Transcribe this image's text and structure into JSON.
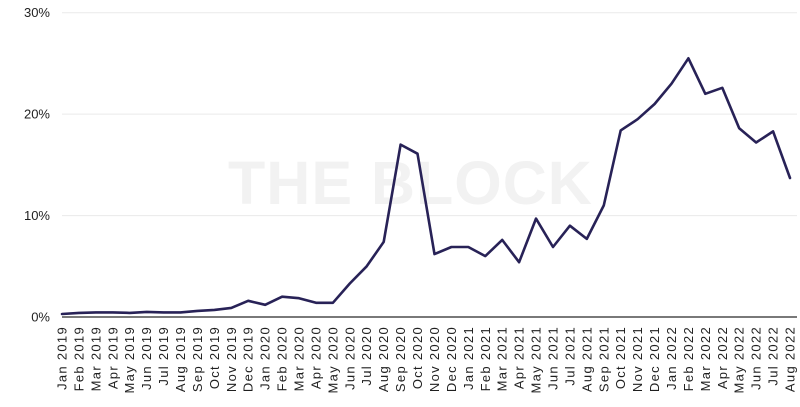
{
  "chart_data": {
    "type": "line",
    "title": "",
    "xlabel": "",
    "ylabel": "",
    "categories": [
      "Jan 2019",
      "Feb 2019",
      "Mar 2019",
      "Apr 2019",
      "May 2019",
      "Jun 2019",
      "Jul 2019",
      "Aug 2019",
      "Sep 2019",
      "Oct 2019",
      "Nov 2019",
      "Dec 2019",
      "Jan 2020",
      "Feb 2020",
      "Mar 2020",
      "Apr 2020",
      "May 2020",
      "Jun 2020",
      "Jul 2020",
      "Aug 2020",
      "Sep 2020",
      "Oct 2020",
      "Nov 2020",
      "Dec 2020",
      "Jan 2021",
      "Feb 2021",
      "Mar 2021",
      "Apr 2021",
      "May 2021",
      "Jun 2021",
      "Jul 2021",
      "Aug 2021",
      "Sep 2021",
      "Oct 2021",
      "Nov 2021",
      "Dec 2021",
      "Jan 2022",
      "Feb 2022",
      "Mar 2022",
      "Apr 2022",
      "May 2022",
      "Jun 2022",
      "Jul 2022",
      "Aug 2022"
    ],
    "values": [
      0.3,
      0.4,
      0.45,
      0.45,
      0.4,
      0.5,
      0.45,
      0.45,
      0.6,
      0.7,
      0.9,
      1.6,
      1.2,
      2.0,
      1.85,
      1.4,
      1.4,
      3.3,
      5.0,
      7.4,
      17.0,
      16.1,
      6.2,
      6.9,
      6.9,
      6.0,
      7.6,
      5.4,
      9.7,
      6.9,
      9.0,
      7.7,
      11.0,
      18.4,
      19.5,
      21.0,
      23.0,
      25.5,
      22.0,
      22.6,
      18.6,
      17.2,
      18.3,
      13.7
    ],
    "ylim": [
      0,
      30
    ],
    "yticks": [
      {
        "value": 0,
        "label": "0%"
      },
      {
        "value": 10,
        "label": "10%"
      },
      {
        "value": 20,
        "label": "20%"
      },
      {
        "value": 30,
        "label": "30%"
      }
    ],
    "grid": "horizontal",
    "legend": "none",
    "x_label_rotation": -90,
    "watermark": "THE BLOCK"
  },
  "colors": {
    "background": "#ffffff",
    "line": "#282257",
    "grid": "#eaeaea",
    "axis": "#4d4d4d",
    "tick_text": "#1f1f1f",
    "watermark": "#f2f2f2"
  }
}
